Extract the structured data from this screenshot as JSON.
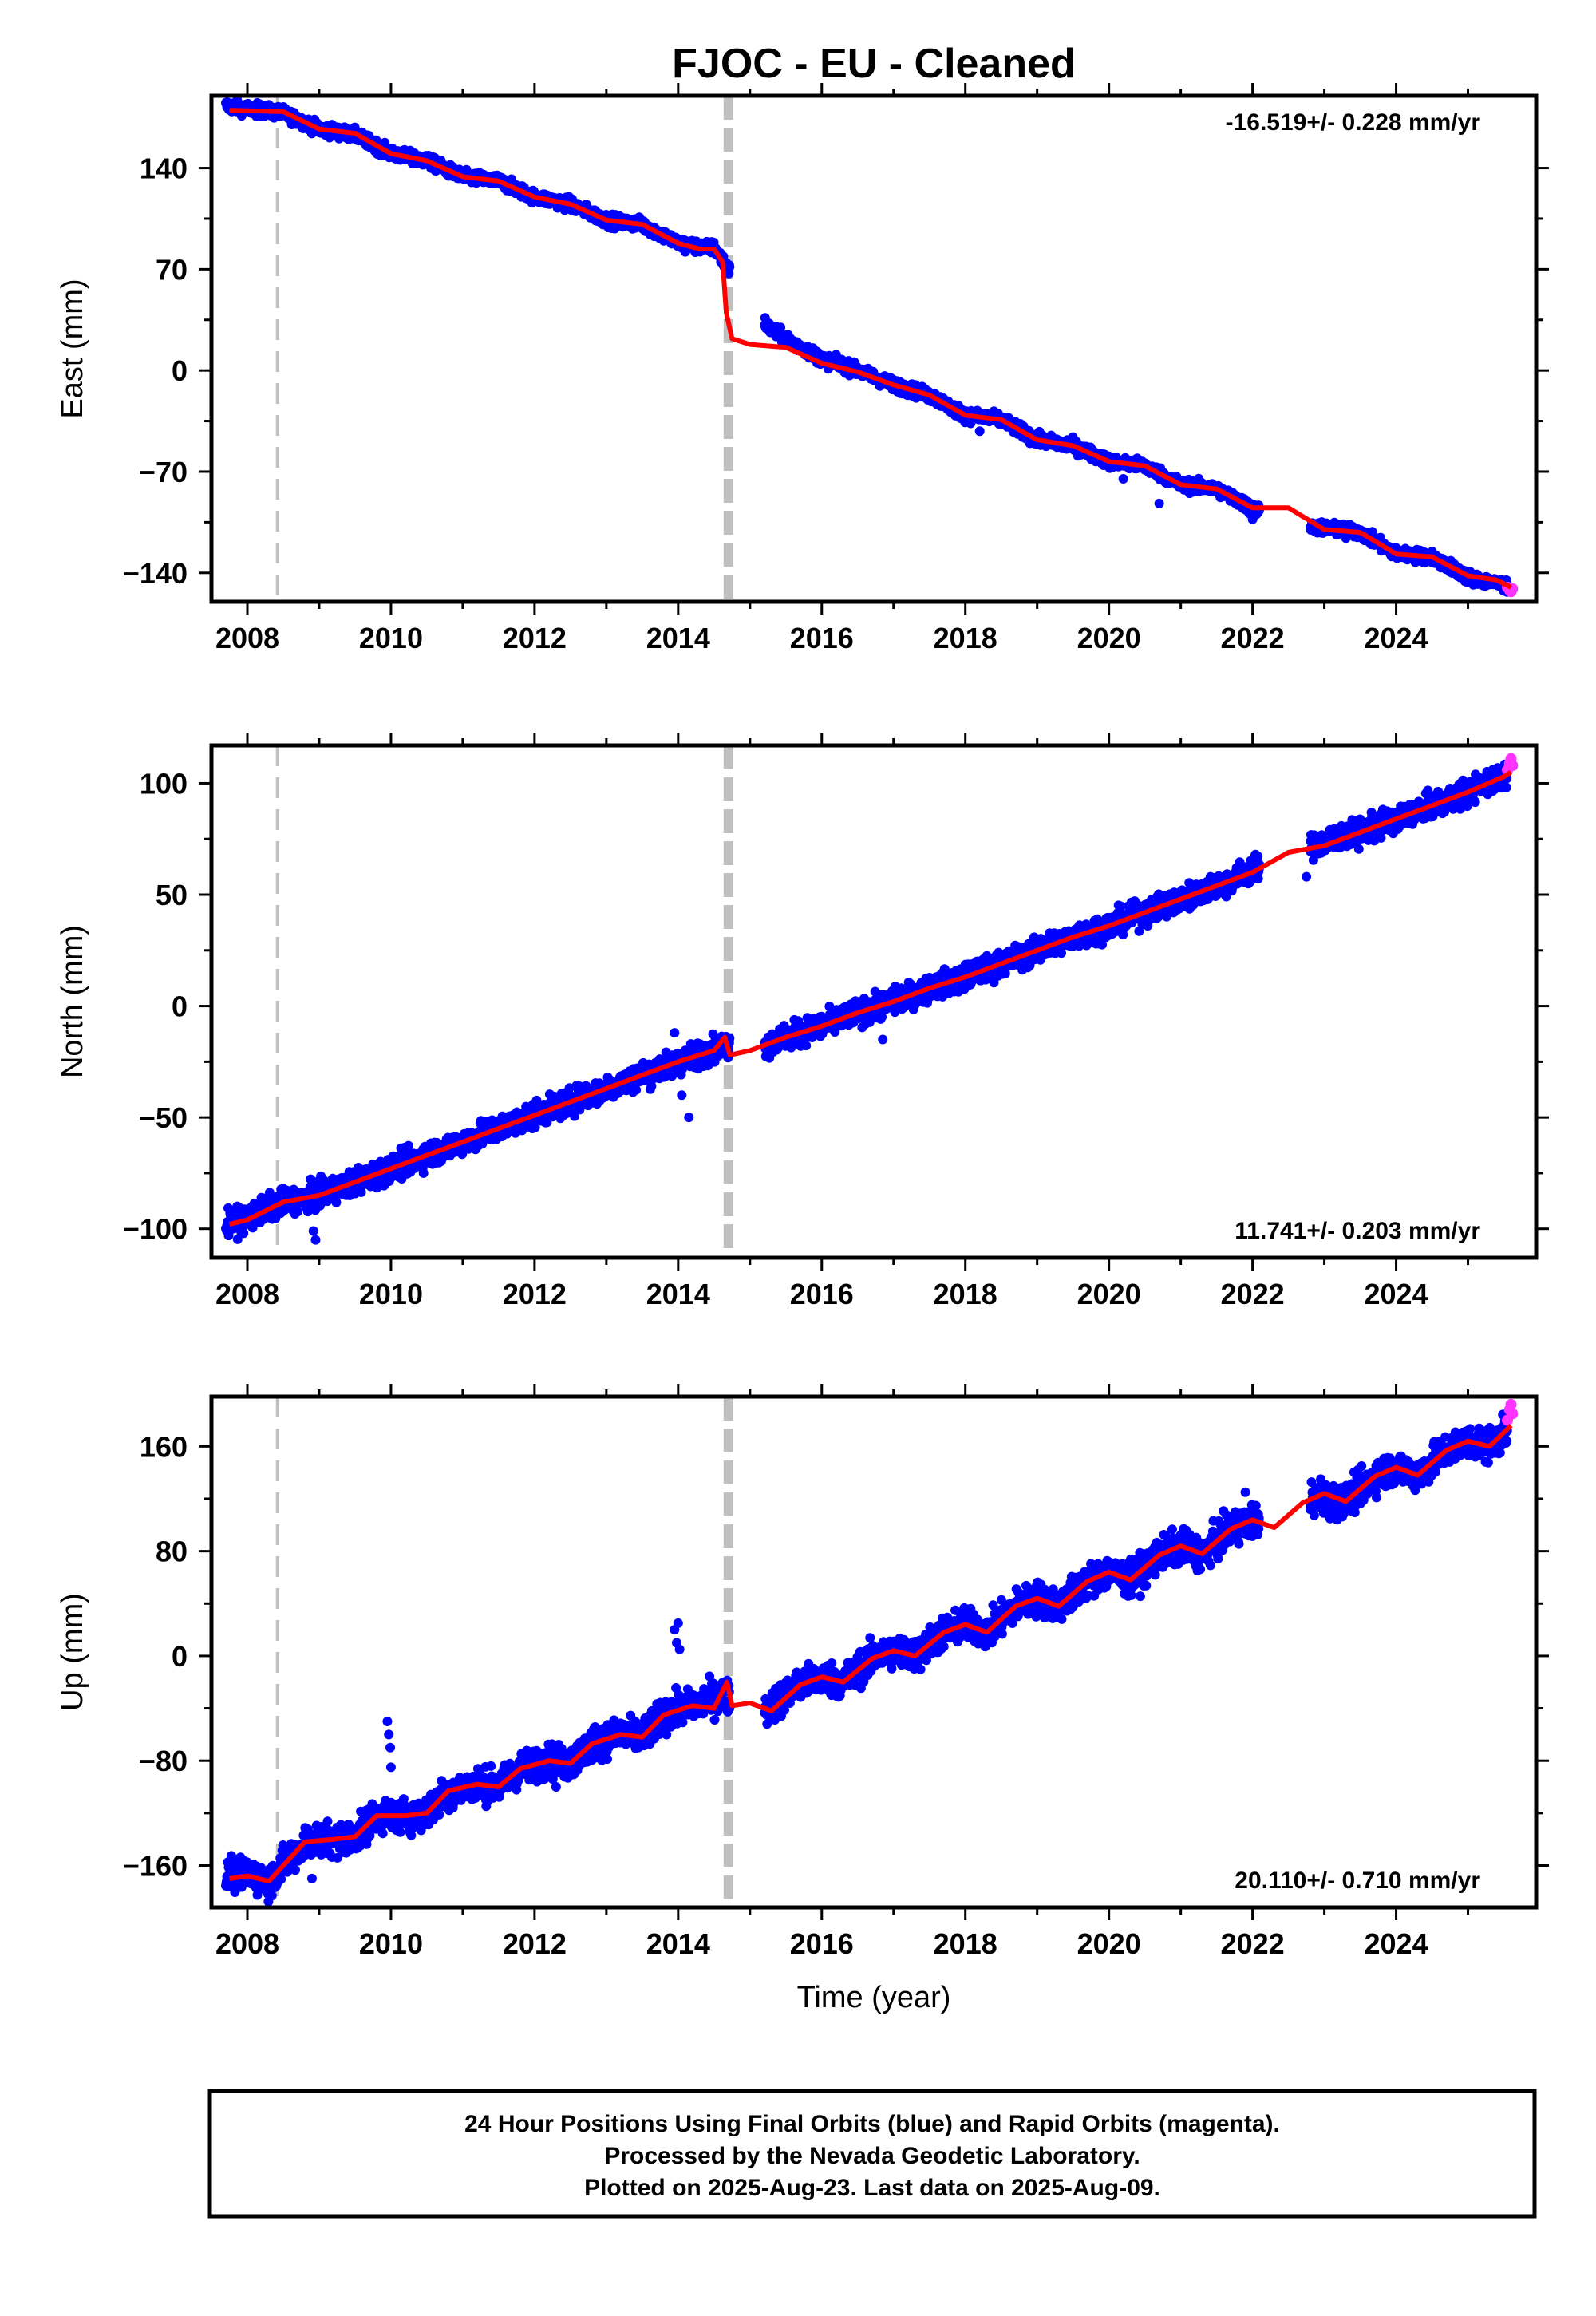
{
  "figure": {
    "title": "FJOC  - EU - Cleaned",
    "xlabel": "Time (year)",
    "caption": [
      "24 Hour Positions Using Final Orbits (blue) and Rapid Orbits (magenta).",
      "Processed by the Nevada Geodetic Laboratory.",
      "Plotted on 2025-Aug-23. Last data on 2025-Aug-09."
    ]
  },
  "colors": {
    "final_points": "#0000ff",
    "rapid_points": "#ff33ff",
    "model_line": "#ff0000",
    "equipment_change_line": "#c0c0c0"
  },
  "chart_data": [
    {
      "type": "scatter",
      "component": "East",
      "ylabel": "East (mm)",
      "rate_label": "-16.519+/- 0.228 mm/yr",
      "rate_label_position": "top-right",
      "xlim": [
        2007.5,
        2025.95
      ],
      "ylim": [
        -160,
        190
      ],
      "xticks": [
        2008,
        2010,
        2012,
        2014,
        2016,
        2018,
        2020,
        2022,
        2024
      ],
      "yticks": [
        -140,
        -70,
        0,
        70,
        140
      ],
      "grid": false,
      "model_line": [
        [
          2007.75,
          180
        ],
        [
          2008.5,
          179
        ],
        [
          2009.0,
          167
        ],
        [
          2009.5,
          164
        ],
        [
          2010.0,
          150
        ],
        [
          2010.5,
          145
        ],
        [
          2011.0,
          134
        ],
        [
          2011.5,
          131
        ],
        [
          2012.0,
          120
        ],
        [
          2012.5,
          115
        ],
        [
          2013.0,
          104
        ],
        [
          2013.5,
          101
        ],
        [
          2014.0,
          88
        ],
        [
          2014.3,
          84
        ],
        [
          2014.5,
          84
        ],
        [
          2014.62,
          75
        ],
        [
          2014.67,
          40
        ],
        [
          2014.75,
          22
        ],
        [
          2015.0,
          18
        ],
        [
          2015.5,
          16
        ],
        [
          2016.0,
          5
        ],
        [
          2016.5,
          -1
        ],
        [
          2017.0,
          -10
        ],
        [
          2017.5,
          -17
        ],
        [
          2018.0,
          -31
        ],
        [
          2018.5,
          -34
        ],
        [
          2019.0,
          -48
        ],
        [
          2019.5,
          -52
        ],
        [
          2020.0,
          -63
        ],
        [
          2020.5,
          -66
        ],
        [
          2021.0,
          -79
        ],
        [
          2021.5,
          -82
        ],
        [
          2022.0,
          -95
        ],
        [
          2022.5,
          -95
        ],
        [
          2023.0,
          -110
        ],
        [
          2023.5,
          -112
        ],
        [
          2024.0,
          -127
        ],
        [
          2024.5,
          -129
        ],
        [
          2025.0,
          -142
        ],
        [
          2025.4,
          -145
        ],
        [
          2025.6,
          -150
        ]
      ],
      "final_trend": [
        [
          2007.7,
          183
        ],
        [
          2008.5,
          178
        ],
        [
          2009.0,
          167
        ],
        [
          2009.5,
          163
        ],
        [
          2010.0,
          150
        ],
        [
          2010.5,
          145
        ],
        [
          2011.0,
          134
        ],
        [
          2011.5,
          131
        ],
        [
          2012.0,
          120
        ],
        [
          2012.5,
          115
        ],
        [
          2013.0,
          104
        ],
        [
          2013.5,
          101
        ],
        [
          2014.0,
          88
        ],
        [
          2014.35,
          85
        ],
        [
          2014.5,
          85
        ],
        [
          2015.25,
          30
        ],
        [
          2015.5,
          22
        ],
        [
          2016.0,
          8
        ],
        [
          2016.5,
          0
        ],
        [
          2017.0,
          -10
        ],
        [
          2017.5,
          -17
        ],
        [
          2018.0,
          -31
        ],
        [
          2018.5,
          -34
        ],
        [
          2019.0,
          -48
        ],
        [
          2019.5,
          -52
        ],
        [
          2020.0,
          -63
        ],
        [
          2020.5,
          -66
        ],
        [
          2021.0,
          -79
        ],
        [
          2021.5,
          -82
        ],
        [
          2022.05,
          -97
        ],
        [
          2022.85,
          -108
        ],
        [
          2023.5,
          -112
        ],
        [
          2024.0,
          -127
        ],
        [
          2024.5,
          -129
        ],
        [
          2025.0,
          -143
        ],
        [
          2025.55,
          -149
        ]
      ],
      "final_gaps": [
        [
          2014.72,
          2015.2
        ],
        [
          2022.1,
          2022.8
        ]
      ],
      "final_scatter_mm": 3,
      "rapid_points": [
        [
          2025.55,
          -150
        ],
        [
          2025.58,
          -152
        ],
        [
          2025.6,
          -153
        ],
        [
          2025.62,
          -151
        ]
      ],
      "outliers": [
        [
          2014.1,
          82
        ],
        [
          2010.3,
          143
        ],
        [
          2018.2,
          -42
        ],
        [
          2020.7,
          -92
        ],
        [
          2020.2,
          -75
        ],
        [
          2022.0,
          -103
        ],
        [
          2023.3,
          -116
        ]
      ]
    },
    {
      "type": "scatter",
      "component": "North",
      "ylabel": "North (mm)",
      "rate_label": "11.741+/- 0.203 mm/yr",
      "rate_label_position": "bottom-right",
      "xlim": [
        2007.5,
        2025.95
      ],
      "ylim": [
        -113,
        117
      ],
      "xticks": [
        2008,
        2010,
        2012,
        2014,
        2016,
        2018,
        2020,
        2022,
        2024
      ],
      "yticks": [
        -100,
        -50,
        0,
        50,
        100
      ],
      "grid": false,
      "model_line": [
        [
          2007.75,
          -98
        ],
        [
          2008.0,
          -96
        ],
        [
          2008.5,
          -88
        ],
        [
          2009.0,
          -85
        ],
        [
          2009.5,
          -79
        ],
        [
          2010.0,
          -73
        ],
        [
          2010.5,
          -67
        ],
        [
          2011.0,
          -61
        ],
        [
          2011.5,
          -55
        ],
        [
          2012.0,
          -49
        ],
        [
          2012.5,
          -43
        ],
        [
          2013.0,
          -37
        ],
        [
          2013.5,
          -31
        ],
        [
          2014.0,
          -25
        ],
        [
          2014.5,
          -20
        ],
        [
          2014.65,
          -14
        ],
        [
          2014.72,
          -22
        ],
        [
          2015.0,
          -20
        ],
        [
          2015.5,
          -14
        ],
        [
          2016.0,
          -9
        ],
        [
          2016.5,
          -3
        ],
        [
          2017.0,
          2
        ],
        [
          2017.5,
          8
        ],
        [
          2018.0,
          13
        ],
        [
          2018.5,
          19
        ],
        [
          2019.0,
          25
        ],
        [
          2019.5,
          31
        ],
        [
          2020.0,
          36
        ],
        [
          2020.5,
          42
        ],
        [
          2021.0,
          48
        ],
        [
          2021.5,
          54
        ],
        [
          2022.0,
          60
        ],
        [
          2022.5,
          69
        ],
        [
          2023.0,
          72
        ],
        [
          2023.5,
          78
        ],
        [
          2024.0,
          84
        ],
        [
          2024.5,
          90
        ],
        [
          2025.0,
          96
        ],
        [
          2025.5,
          103
        ],
        [
          2025.6,
          105
        ]
      ],
      "final_trend": [
        [
          2007.7,
          -98
        ],
        [
          2008.0,
          -95
        ],
        [
          2008.5,
          -88
        ],
        [
          2009.0,
          -85
        ],
        [
          2009.5,
          -79
        ],
        [
          2010.0,
          -73
        ],
        [
          2010.5,
          -67
        ],
        [
          2011.0,
          -61
        ],
        [
          2011.5,
          -55
        ],
        [
          2012.0,
          -49
        ],
        [
          2012.5,
          -43
        ],
        [
          2013.0,
          -37
        ],
        [
          2013.5,
          -31
        ],
        [
          2014.0,
          -25
        ],
        [
          2014.6,
          -18
        ],
        [
          2015.25,
          -17
        ],
        [
          2015.5,
          -14
        ],
        [
          2016.0,
          -9
        ],
        [
          2016.5,
          -3
        ],
        [
          2017.0,
          2
        ],
        [
          2017.5,
          8
        ],
        [
          2018.0,
          13
        ],
        [
          2018.5,
          19
        ],
        [
          2019.0,
          25
        ],
        [
          2019.5,
          31
        ],
        [
          2020.0,
          36
        ],
        [
          2020.5,
          42
        ],
        [
          2021.0,
          48
        ],
        [
          2021.5,
          54
        ],
        [
          2022.05,
          62
        ],
        [
          2022.85,
          72
        ],
        [
          2023.5,
          78
        ],
        [
          2024.0,
          84
        ],
        [
          2024.5,
          90
        ],
        [
          2025.0,
          96
        ],
        [
          2025.55,
          105
        ]
      ],
      "final_gaps": [
        [
          2014.72,
          2015.2
        ],
        [
          2022.1,
          2022.8
        ]
      ],
      "final_scatter_mm": 4,
      "rapid_points": [
        [
          2025.55,
          106
        ],
        [
          2025.58,
          109
        ],
        [
          2025.6,
          111
        ],
        [
          2025.62,
          108
        ]
      ],
      "outliers": [
        [
          2008.95,
          -105
        ],
        [
          2008.92,
          -101
        ],
        [
          2014.15,
          -50
        ],
        [
          2014.05,
          -40
        ],
        [
          2013.95,
          -12
        ],
        [
          2016.85,
          -15
        ],
        [
          2020.9,
          42
        ],
        [
          2022.75,
          58
        ]
      ]
    },
    {
      "type": "scatter",
      "component": "Up",
      "ylabel": "Up (mm)",
      "rate_label": "20.110+/- 0.710 mm/yr",
      "rate_label_position": "bottom-right",
      "xlim": [
        2007.5,
        2025.95
      ],
      "ylim": [
        -192,
        198
      ],
      "xticks": [
        2008,
        2010,
        2012,
        2014,
        2016,
        2018,
        2020,
        2022,
        2024
      ],
      "yticks": [
        -160,
        -80,
        0,
        80,
        160
      ],
      "grid": false,
      "model_line": [
        [
          2007.75,
          -170
        ],
        [
          2008.0,
          -168
        ],
        [
          2008.3,
          -172
        ],
        [
          2008.5,
          -160
        ],
        [
          2008.8,
          -142
        ],
        [
          2009.2,
          -140
        ],
        [
          2009.5,
          -138
        ],
        [
          2009.8,
          -122
        ],
        [
          2010.2,
          -122
        ],
        [
          2010.5,
          -120
        ],
        [
          2010.8,
          -103
        ],
        [
          2011.2,
          -98
        ],
        [
          2011.5,
          -100
        ],
        [
          2011.8,
          -86
        ],
        [
          2012.2,
          -80
        ],
        [
          2012.5,
          -82
        ],
        [
          2012.8,
          -67
        ],
        [
          2013.2,
          -60
        ],
        [
          2013.5,
          -62
        ],
        [
          2013.8,
          -45
        ],
        [
          2014.2,
          -38
        ],
        [
          2014.5,
          -40
        ],
        [
          2014.68,
          -20
        ],
        [
          2014.75,
          -38
        ],
        [
          2015.0,
          -36
        ],
        [
          2015.3,
          -42
        ],
        [
          2015.7,
          -22
        ],
        [
          2016.0,
          -16
        ],
        [
          2016.3,
          -20
        ],
        [
          2016.7,
          -2
        ],
        [
          2017.0,
          4
        ],
        [
          2017.3,
          0
        ],
        [
          2017.7,
          18
        ],
        [
          2018.0,
          24
        ],
        [
          2018.3,
          18
        ],
        [
          2018.7,
          38
        ],
        [
          2019.0,
          44
        ],
        [
          2019.3,
          38
        ],
        [
          2019.7,
          57
        ],
        [
          2020.0,
          64
        ],
        [
          2020.3,
          58
        ],
        [
          2020.7,
          77
        ],
        [
          2021.0,
          84
        ],
        [
          2021.3,
          78
        ],
        [
          2021.7,
          97
        ],
        [
          2022.0,
          104
        ],
        [
          2022.3,
          98
        ],
        [
          2022.7,
          117
        ],
        [
          2023.0,
          124
        ],
        [
          2023.3,
          118
        ],
        [
          2023.7,
          137
        ],
        [
          2024.0,
          144
        ],
        [
          2024.3,
          138
        ],
        [
          2024.7,
          157
        ],
        [
          2025.0,
          164
        ],
        [
          2025.3,
          160
        ],
        [
          2025.6,
          176
        ]
      ],
      "final_trend": [
        [
          2007.7,
          -168
        ],
        [
          2008.0,
          -166
        ],
        [
          2008.3,
          -172
        ],
        [
          2008.5,
          -160
        ],
        [
          2008.8,
          -142
        ],
        [
          2009.2,
          -140
        ],
        [
          2009.5,
          -138
        ],
        [
          2009.8,
          -122
        ],
        [
          2010.2,
          -122
        ],
        [
          2010.5,
          -120
        ],
        [
          2010.8,
          -103
        ],
        [
          2011.2,
          -98
        ],
        [
          2011.5,
          -100
        ],
        [
          2011.8,
          -86
        ],
        [
          2012.2,
          -80
        ],
        [
          2012.5,
          -82
        ],
        [
          2012.8,
          -67
        ],
        [
          2013.2,
          -60
        ],
        [
          2013.5,
          -62
        ],
        [
          2013.8,
          -45
        ],
        [
          2014.2,
          -38
        ],
        [
          2014.6,
          -30
        ],
        [
          2015.25,
          -40
        ],
        [
          2015.7,
          -22
        ],
        [
          2016.0,
          -16
        ],
        [
          2016.3,
          -20
        ],
        [
          2016.7,
          -2
        ],
        [
          2017.0,
          4
        ],
        [
          2017.3,
          0
        ],
        [
          2017.7,
          18
        ],
        [
          2018.0,
          24
        ],
        [
          2018.3,
          18
        ],
        [
          2018.7,
          38
        ],
        [
          2019.0,
          44
        ],
        [
          2019.3,
          38
        ],
        [
          2019.7,
          57
        ],
        [
          2020.0,
          64
        ],
        [
          2020.3,
          58
        ],
        [
          2020.7,
          77
        ],
        [
          2021.0,
          84
        ],
        [
          2021.3,
          78
        ],
        [
          2021.7,
          97
        ],
        [
          2022.05,
          104
        ],
        [
          2022.85,
          120
        ],
        [
          2023.3,
          118
        ],
        [
          2023.7,
          137
        ],
        [
          2024.0,
          144
        ],
        [
          2024.3,
          138
        ],
        [
          2024.7,
          157
        ],
        [
          2025.0,
          164
        ],
        [
          2025.3,
          160
        ],
        [
          2025.55,
          172
        ]
      ],
      "final_gaps": [
        [
          2014.72,
          2015.2
        ],
        [
          2022.1,
          2022.8
        ]
      ],
      "final_scatter_mm": 9,
      "rapid_points": [
        [
          2025.55,
          180
        ],
        [
          2025.58,
          188
        ],
        [
          2025.6,
          192
        ],
        [
          2025.62,
          185
        ]
      ],
      "outliers": [
        [
          2009.95,
          -50
        ],
        [
          2009.97,
          -60
        ],
        [
          2009.99,
          -70
        ],
        [
          2010.0,
          -85
        ],
        [
          2013.95,
          20
        ],
        [
          2013.98,
          10
        ],
        [
          2014.0,
          25
        ],
        [
          2014.02,
          5
        ],
        [
          2021.9,
          125
        ],
        [
          2022.95,
          135
        ],
        [
          2012.3,
          -100
        ],
        [
          2008.9,
          -170
        ]
      ]
    }
  ],
  "equipment_changes": [
    {
      "x": 2008.42,
      "style": "thin"
    },
    {
      "x": 2014.7,
      "style": "thick"
    }
  ]
}
